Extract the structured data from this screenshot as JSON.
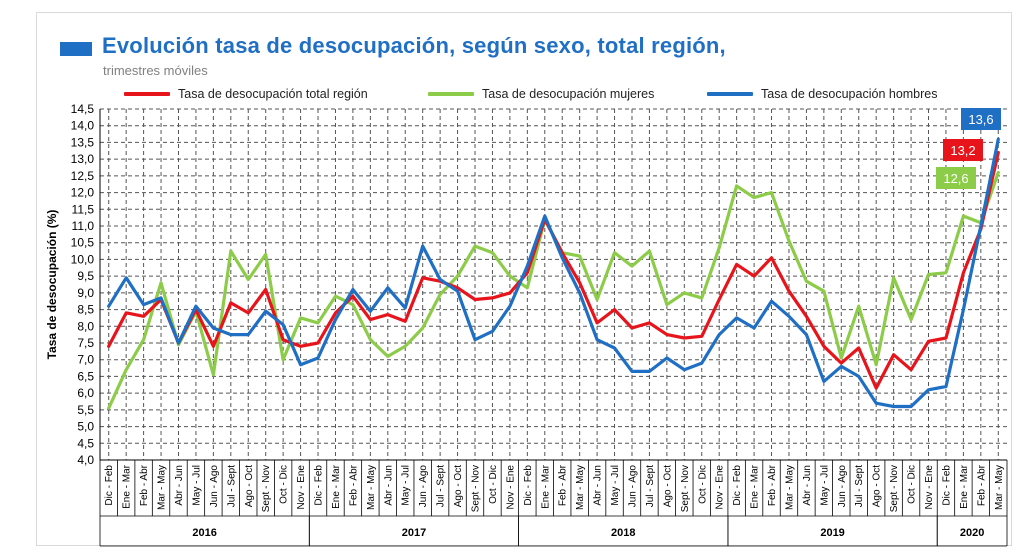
{
  "title": "Evolución tasa de desocupación, según sexo, total región,",
  "subtitle": "trimestres móviles",
  "colors": {
    "total": "#e8141b",
    "mujeres": "#8ccc48",
    "hombres": "#1f6fc5",
    "title": "#1f6fc5"
  },
  "chart_data": {
    "type": "line",
    "ylabel": "Tasa de desocupación (%)",
    "xlabel": "",
    "ylim": [
      4.0,
      14.5
    ],
    "yticks": [
      "4,0",
      "4,5",
      "5,0",
      "5,5",
      "6,0",
      "6,5",
      "7,0",
      "7,5",
      "8,0",
      "8,5",
      "9,0",
      "9,5",
      "10,0",
      "10,5",
      "11,0",
      "11,5",
      "12,0",
      "12,5",
      "13,0",
      "13,5",
      "14,0",
      "14,5"
    ],
    "grid": true,
    "legend": "top",
    "categories": [
      "Dic - Feb",
      "Ene - Mar",
      "Feb - Abr",
      "Mar - May",
      "Abr - Jun",
      "May - Jul",
      "Jun - Ago",
      "Jul - Sept",
      "Ago - Oct",
      "Sept - Nov",
      "Oct - Dic",
      "Nov - Ene",
      "Dic - Feb",
      "Ene - Mar",
      "Feb - Abr",
      "Mar - May",
      "Abr - Jun",
      "May - Jul",
      "Jun - Ago",
      "Jul - Sept",
      "Ago - Oct",
      "Sept - Nov",
      "Oct - Dic",
      "Nov - Ene",
      "Dic - Feb",
      "Ene - Mar",
      "Feb - Abr",
      "Mar - May",
      "Abr - Jun",
      "May - Jul",
      "Jun - Ago",
      "Jul - Sept",
      "Ago - Oct",
      "Sept - Nov",
      "Oct - Dic",
      "Nov - Ene",
      "Dic - Feb",
      "Ene - Mar",
      "Feb - Abr",
      "Mar - May",
      "Abr - Jun",
      "May - Jul",
      "Jun - Ago",
      "Jul - Sept",
      "Ago - Oct",
      "Sept - Nov",
      "Oct - Dic",
      "Nov - Ene",
      "Dic - Feb",
      "Ene - Mar",
      "Feb - Abr",
      "Mar - May"
    ],
    "years": [
      {
        "label": "2016",
        "start": 0,
        "end": 11
      },
      {
        "label": "2017",
        "start": 12,
        "end": 23
      },
      {
        "label": "2018",
        "start": 24,
        "end": 35
      },
      {
        "label": "2019",
        "start": 36,
        "end": 47
      },
      {
        "label": "2020",
        "start": 48,
        "end": 51
      }
    ],
    "series": [
      {
        "name": "Tasa de desocupación total región",
        "color": "#e8141b",
        "values": [
          7.4,
          8.4,
          8.3,
          8.8,
          7.5,
          8.5,
          7.4,
          8.7,
          8.4,
          9.1,
          7.6,
          7.4,
          7.5,
          8.4,
          8.9,
          8.2,
          8.35,
          8.15,
          9.45,
          9.35,
          9.15,
          8.8,
          8.85,
          9.0,
          9.6,
          11.2,
          10.2,
          9.3,
          8.1,
          8.5,
          7.95,
          8.1,
          7.75,
          7.65,
          7.7,
          8.8,
          9.85,
          9.5,
          10.05,
          9.05,
          8.3,
          7.4,
          6.9,
          7.35,
          6.15,
          7.15,
          6.7,
          7.55,
          7.65,
          9.6,
          10.9,
          13.2
        ]
      },
      {
        "name": "Tasa de desocupación mujeres",
        "color": "#8ccc48",
        "values": [
          5.55,
          6.7,
          7.6,
          9.3,
          7.45,
          8.45,
          6.55,
          10.25,
          9.4,
          10.15,
          7.0,
          8.25,
          8.1,
          8.9,
          8.65,
          7.6,
          7.1,
          7.4,
          7.95,
          8.95,
          9.5,
          10.4,
          10.2,
          9.5,
          9.15,
          11.2,
          10.2,
          10.1,
          8.8,
          10.2,
          9.8,
          10.25,
          8.65,
          9.0,
          8.85,
          10.35,
          12.2,
          11.85,
          12.0,
          10.55,
          9.35,
          9.05,
          7.05,
          8.6,
          6.85,
          9.45,
          8.2,
          9.55,
          9.6,
          11.3,
          11.1,
          12.6
        ]
      },
      {
        "name": "Tasa de desocupación hombres",
        "color": "#1f6fc5",
        "values": [
          8.6,
          9.45,
          8.65,
          8.85,
          7.5,
          8.6,
          7.95,
          7.75,
          7.75,
          8.45,
          8.05,
          6.85,
          7.05,
          8.2,
          9.1,
          8.45,
          9.15,
          8.55,
          10.4,
          9.4,
          9.05,
          7.6,
          7.85,
          8.6,
          9.8,
          11.3,
          10.05,
          9.0,
          7.6,
          7.35,
          6.65,
          6.65,
          7.05,
          6.7,
          6.9,
          7.75,
          8.25,
          7.95,
          8.75,
          8.3,
          7.75,
          6.35,
          6.8,
          6.5,
          5.7,
          5.6,
          5.6,
          6.1,
          6.2,
          8.5,
          11.0,
          13.6
        ]
      }
    ],
    "end_labels": [
      {
        "series": 2,
        "text": "13,6"
      },
      {
        "series": 0,
        "text": "13,2"
      },
      {
        "series": 1,
        "text": "12,6"
      }
    ]
  }
}
